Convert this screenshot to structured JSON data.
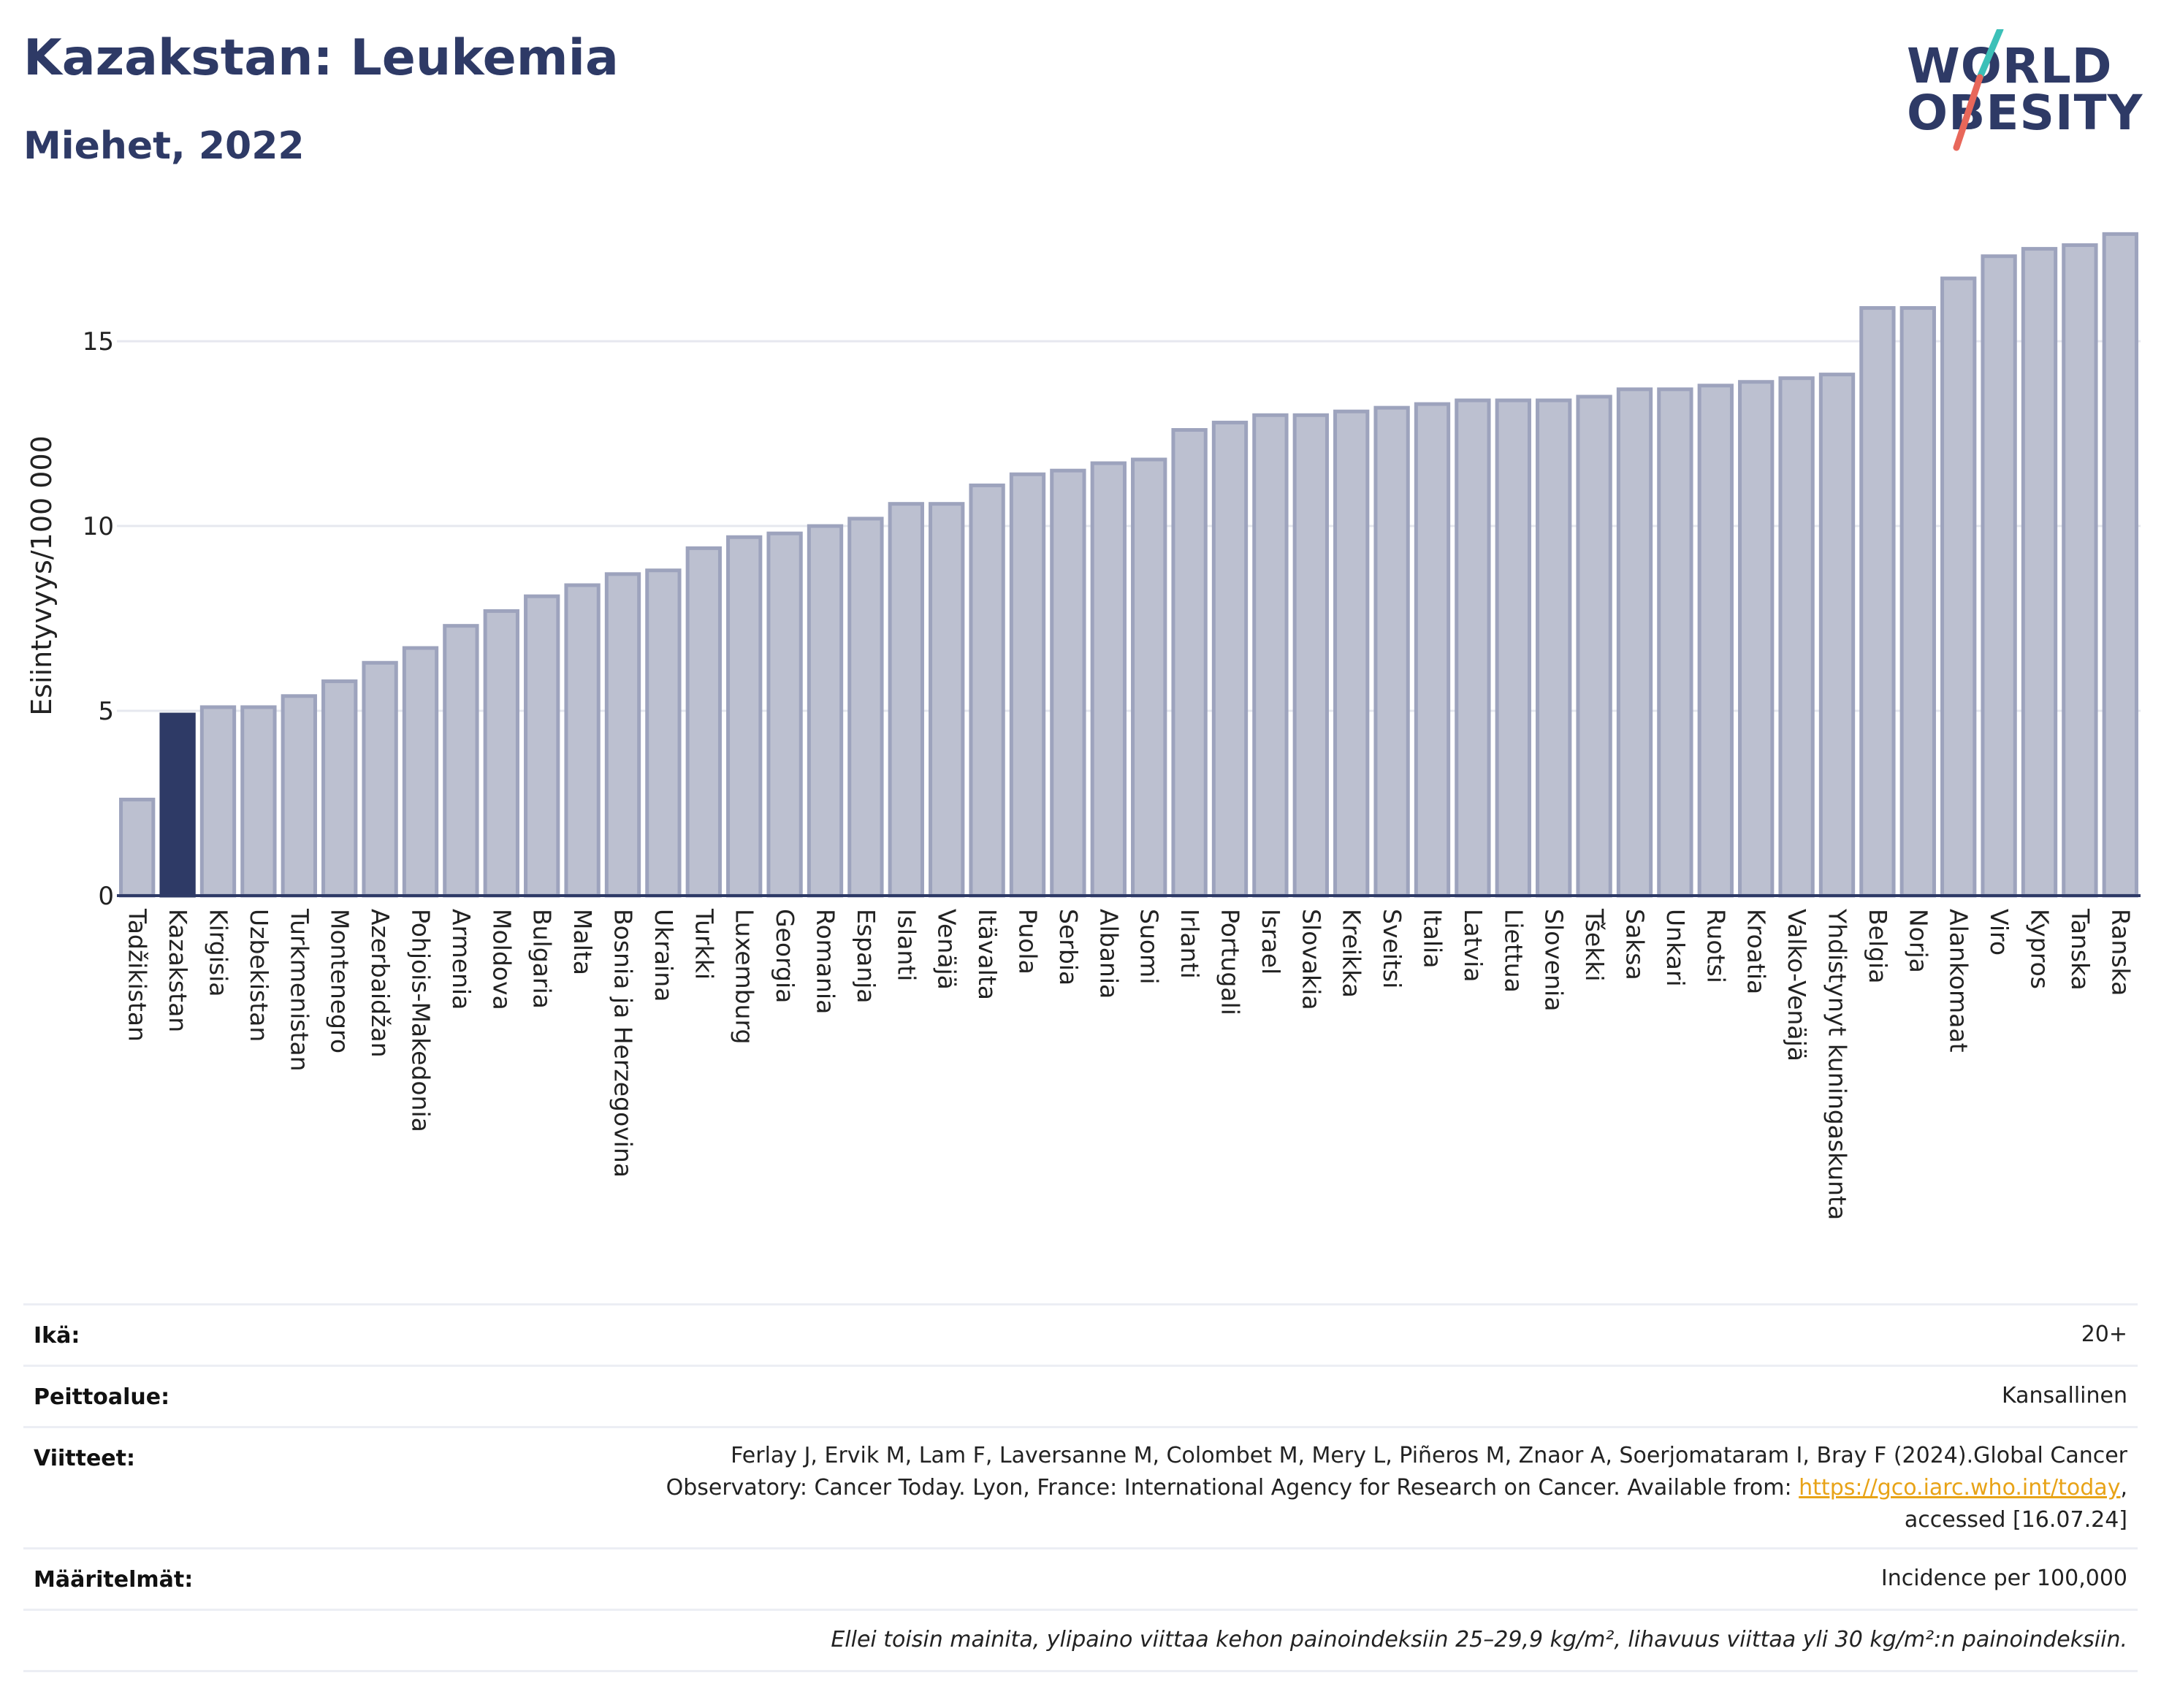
{
  "header": {
    "title": "Kazakstan: Leukemia",
    "subtitle": "Miehet, 2022"
  },
  "logo": {
    "line1": "WORLD",
    "line2": "OBESITY",
    "colors": {
      "text": "#2e3a66",
      "slash_top": "#3cc0b8",
      "slash_bottom": "#e8675a"
    }
  },
  "chart_data": {
    "type": "bar",
    "ylabel": "Esiintyvyys/100 000",
    "xlabel": "",
    "ylim": [
      0,
      18.5
    ],
    "yticks": [
      0,
      5,
      10,
      15
    ],
    "grid": true,
    "highlight": "Kazakstan",
    "colors": {
      "bar": "#bcc0d0",
      "bar_border": "#9da3bd",
      "highlight": "#2e3a66",
      "grid": "#e6e8ef"
    },
    "categories": [
      "Tadžikistan",
      "Kazakstan",
      "Kirgisia",
      "Uzbekistan",
      "Turkmenistan",
      "Montenegro",
      "Azerbaidžan",
      "Pohjois-Makedonia",
      "Armenia",
      "Moldova",
      "Bulgaria",
      "Malta",
      "Bosnia ja Herzegovina",
      "Ukraina",
      "Turkki",
      "Luxemburg",
      "Georgia",
      "Romania",
      "Espanja",
      "Islanti",
      "Venäjä",
      "Itävalta",
      "Puola",
      "Serbia",
      "Albania",
      "Suomi",
      "Irlanti",
      "Portugali",
      "Israel",
      "Slovakia",
      "Kreikka",
      "Sveitsi",
      "Italia",
      "Latvia",
      "Liettua",
      "Slovenia",
      "Tšekki",
      "Saksa",
      "Unkari",
      "Ruotsi",
      "Kroatia",
      "Valko-Venäjä",
      "Yhdistynyt kuningaskunta",
      "Belgia",
      "Norja",
      "Alankomaat",
      "Viro",
      "Kypros",
      "Tanska",
      "Ranska"
    ],
    "values": [
      2.6,
      4.9,
      5.1,
      5.1,
      5.4,
      5.8,
      6.3,
      6.7,
      7.3,
      7.7,
      8.1,
      8.4,
      8.7,
      8.8,
      9.4,
      9.7,
      9.8,
      10.0,
      10.2,
      10.6,
      10.6,
      11.1,
      11.4,
      11.5,
      11.7,
      11.8,
      12.6,
      12.8,
      13.0,
      13.0,
      13.1,
      13.2,
      13.3,
      13.4,
      13.4,
      13.4,
      13.5,
      13.7,
      13.7,
      13.8,
      13.9,
      14.0,
      14.1,
      15.9,
      15.9,
      16.7,
      17.3,
      17.5,
      17.6,
      17.9
    ]
  },
  "info": {
    "age": {
      "label": "Ikä:",
      "value": "20+"
    },
    "coverage": {
      "label": "Peittoalue:",
      "value": "Kansallinen"
    },
    "references": {
      "label": "Viitteet:",
      "line1": "Ferlay J, Ervik M, Lam F, Laversanne M, Colombet M, Mery L, Piñeros M, Znaor A, Soerjomataram I, Bray F (2024).Global Cancer",
      "line2_before": "Observatory: Cancer Today. Lyon, France: International Agency for Research on Cancer. Available from: ",
      "link": "https://gco.iarc.who.int/today",
      "line2_after": ",",
      "line3": "accessed [16.07.24]"
    },
    "definitions": {
      "label": "Määritelmät:",
      "value": "Incidence per 100,000"
    },
    "note": "Ellei toisin mainita, ylipaino viittaa kehon painoindeksiin 25–29,9 kg/m², lihavuus viittaa yli 30 kg/m²:n painoindeksiin."
  }
}
